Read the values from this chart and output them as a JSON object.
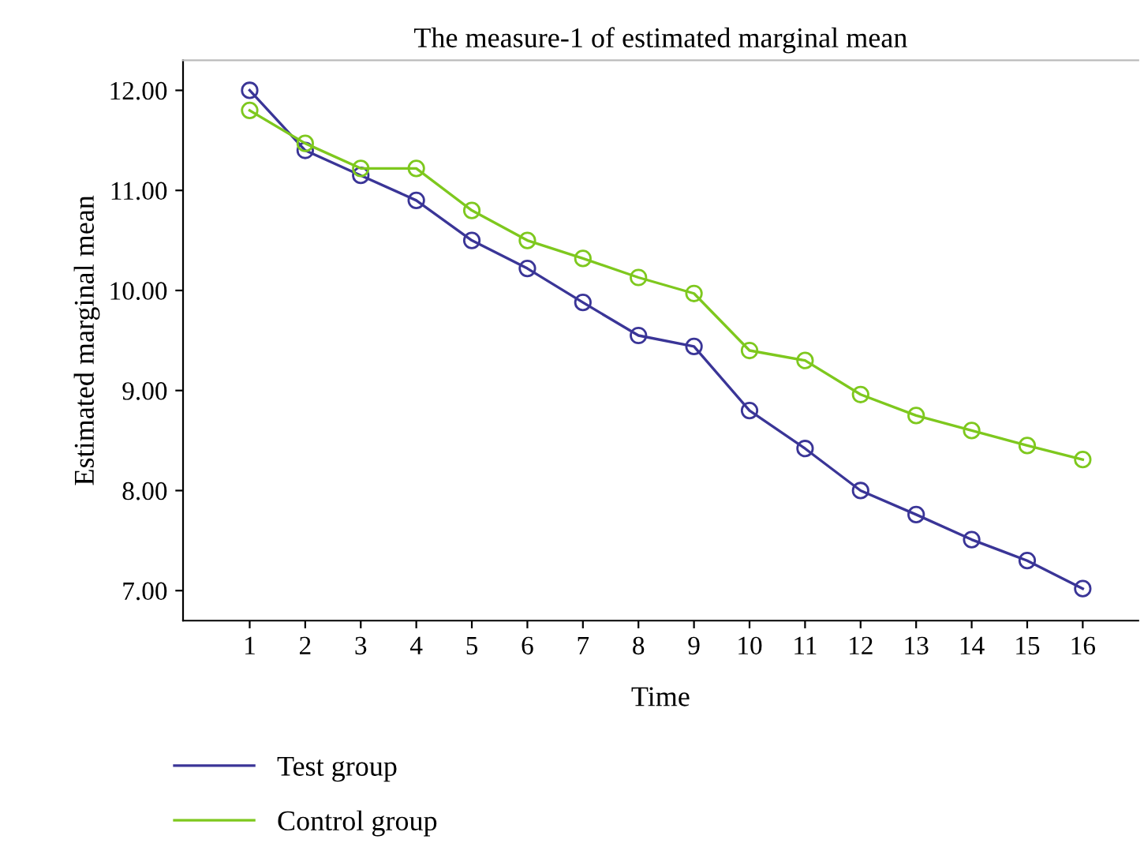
{
  "chart_data": {
    "type": "line",
    "title": "The measure-1 of estimated marginal mean",
    "xlabel": "Time",
    "ylabel": "Estimated marginal mean",
    "categories": [
      "1",
      "2",
      "3",
      "4",
      "5",
      "6",
      "7",
      "8",
      "9",
      "10",
      "11",
      "12",
      "13",
      "14",
      "15",
      "16"
    ],
    "series": [
      {
        "name": "Test group",
        "color": "#3a3597",
        "values": [
          12.0,
          11.4,
          11.15,
          10.9,
          10.5,
          10.22,
          9.88,
          9.55,
          9.44,
          8.8,
          8.42,
          8.0,
          7.76,
          7.51,
          7.3,
          7.02
        ]
      },
      {
        "name": "Control group",
        "color": "#7ec81e",
        "values": [
          11.8,
          11.47,
          11.22,
          11.22,
          10.8,
          10.5,
          10.32,
          10.13,
          9.97,
          9.4,
          9.3,
          8.96,
          8.75,
          8.6,
          8.45,
          8.31
        ]
      }
    ],
    "ylim": [
      6.7,
      12.3
    ],
    "yticks": [
      {
        "value": 7,
        "label": "7.00"
      },
      {
        "value": 8,
        "label": "8.00"
      },
      {
        "value": 9,
        "label": "9.00"
      },
      {
        "value": 10,
        "label": "10.00"
      },
      {
        "value": 11,
        "label": "11.00"
      },
      {
        "value": 12,
        "label": "12.00"
      }
    ],
    "marker": "circle",
    "line_style": "solid",
    "grid": false,
    "legend": "bottom left"
  }
}
